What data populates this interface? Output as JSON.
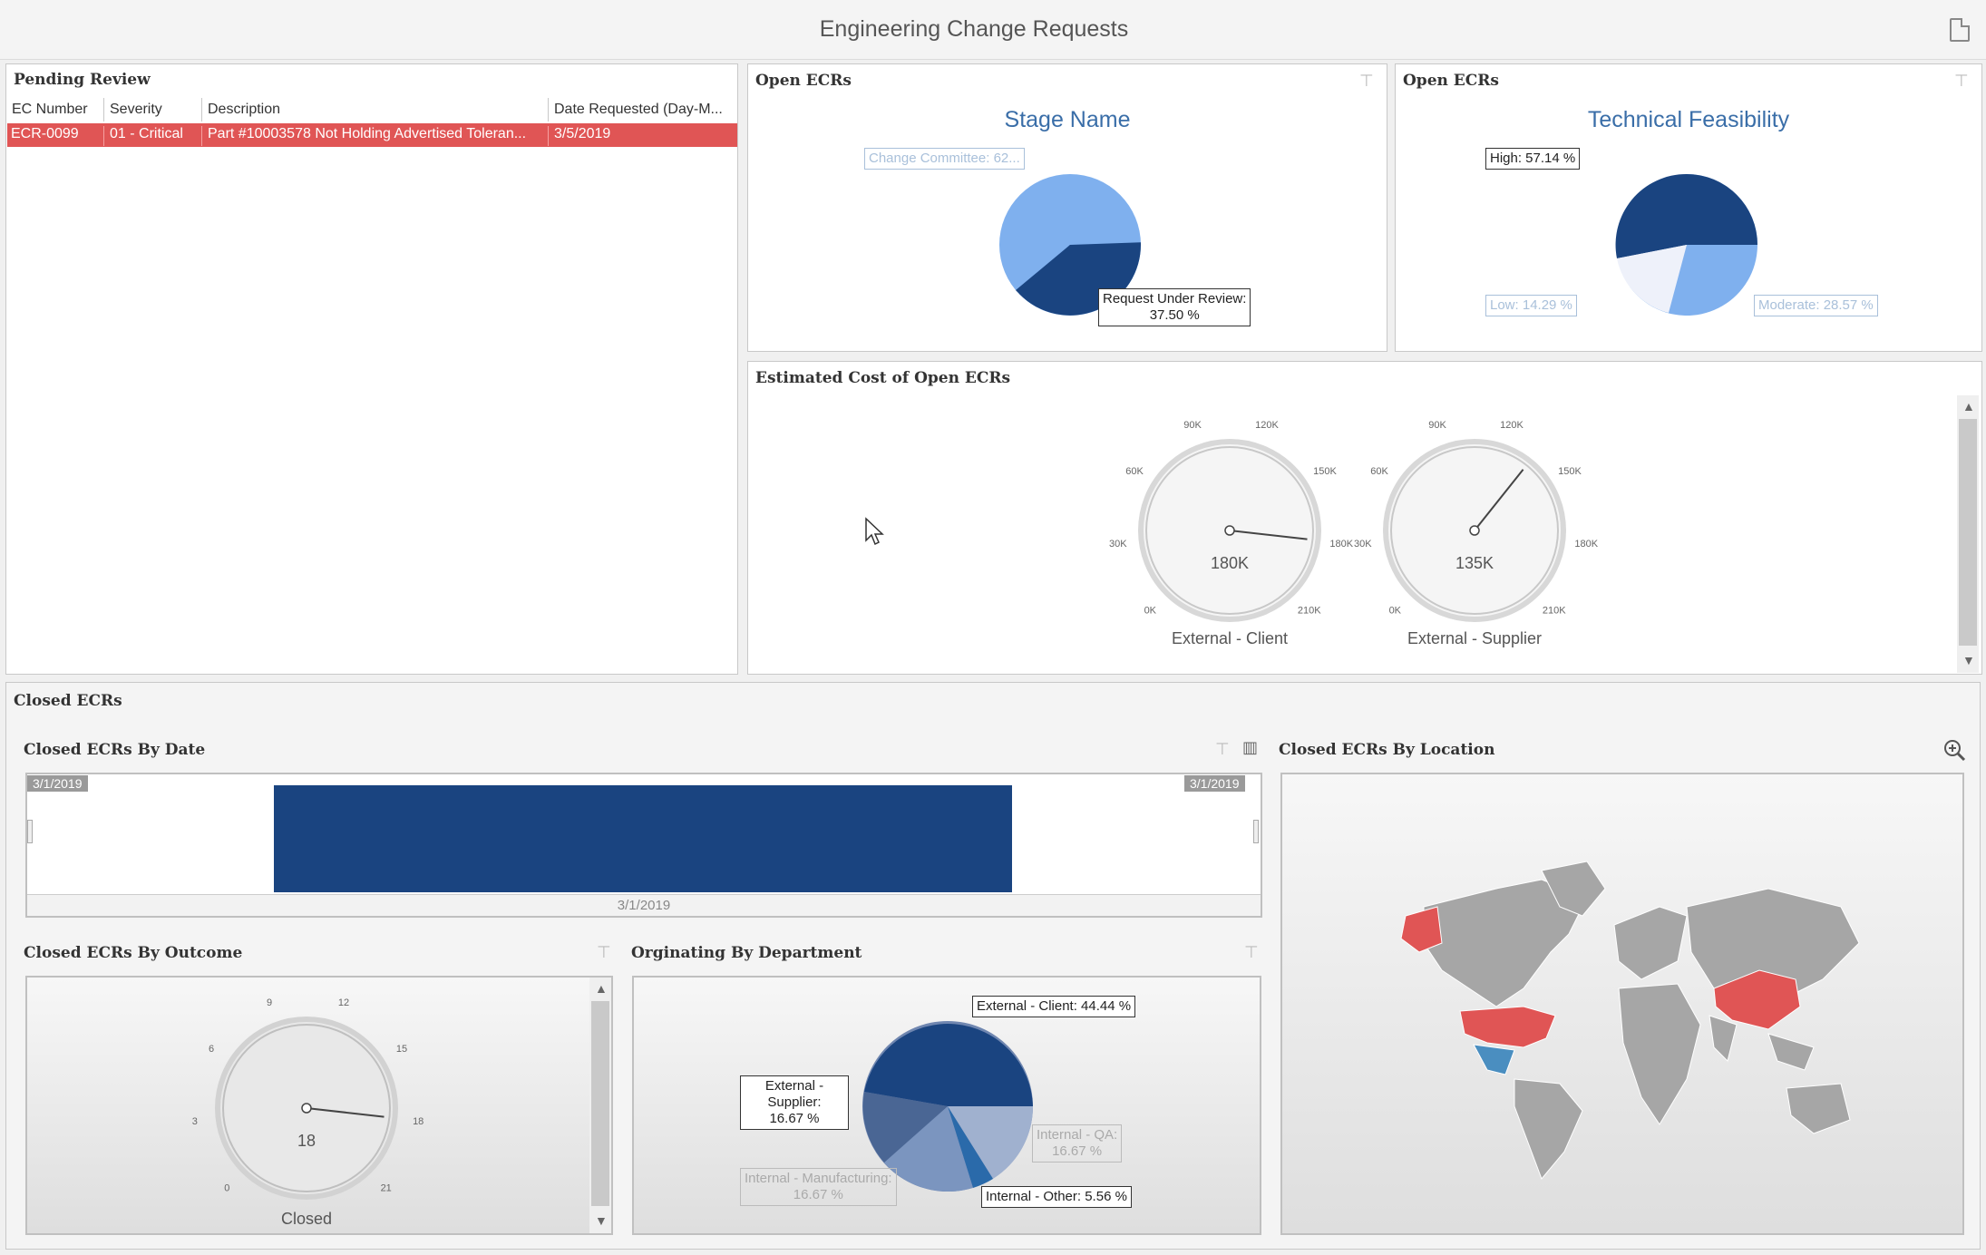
{
  "title": "Engineering Change Requests",
  "pending": {
    "title": "Pending Review",
    "columns": [
      "EC Number",
      "Severity",
      "Description",
      "Date Requested (Day-M..."
    ],
    "rows": [
      {
        "ec": "ECR-0099",
        "severity": "01 - Critical",
        "description": "Part #10003578 Not Holding Advertised Toleran...",
        "date": "3/5/2019"
      }
    ]
  },
  "stage": {
    "panel_title": "Open ECRs",
    "chart_title": "Stage Name",
    "label_a": "Change Committee: 62...",
    "label_b_line1": "Request Under Review:",
    "label_b_line2": "37.50 %"
  },
  "feasibility": {
    "panel_title": "Open ECRs",
    "chart_title": "Technical Feasibility",
    "label_high": "High: 57.14 %",
    "label_low": "Low: 14.29 %",
    "label_moderate": "Moderate: 28.57 %"
  },
  "cost": {
    "panel_title": "Estimated Cost of Open ECRs",
    "ticks": [
      "0K",
      "30K",
      "60K",
      "90K",
      "120K",
      "150K",
      "180K",
      "210K"
    ],
    "gauge1": {
      "value_label": "180K",
      "name": "External - Client",
      "value": 180000
    },
    "gauge2": {
      "value_label": "135K",
      "name": "External - Supplier",
      "value": 135000
    }
  },
  "closed": {
    "section_title": "Closed ECRs",
    "by_date": {
      "title": "Closed ECRs By Date",
      "range_start": "3/1/2019",
      "range_end": "3/1/2019",
      "axis_label": "3/1/2019"
    },
    "by_location": {
      "title": "Closed ECRs By Location"
    },
    "by_outcome": {
      "title": "Closed ECRs By Outcome",
      "ticks": [
        "0",
        "3",
        "6",
        "9",
        "12",
        "15",
        "18",
        "21"
      ],
      "value_label": "18",
      "name": "Closed",
      "value": 18
    },
    "by_department": {
      "title": "Orginating By Department",
      "label_client": "External - Client: 44.44 %",
      "label_supplier_1": "External -",
      "label_supplier_2": "Supplier:",
      "label_supplier_3": "16.67 %",
      "label_qa_1": "Internal - QA:",
      "label_qa_2": "16.67 %",
      "label_mfg_1": "Internal - Manufacturing:",
      "label_mfg_2": "16.67 %",
      "label_other": "Internal - Other: 5.56 %"
    }
  },
  "colors": {
    "navy": "#1a4480",
    "light_blue": "#7fb0ee",
    "red": "#e05555"
  }
}
